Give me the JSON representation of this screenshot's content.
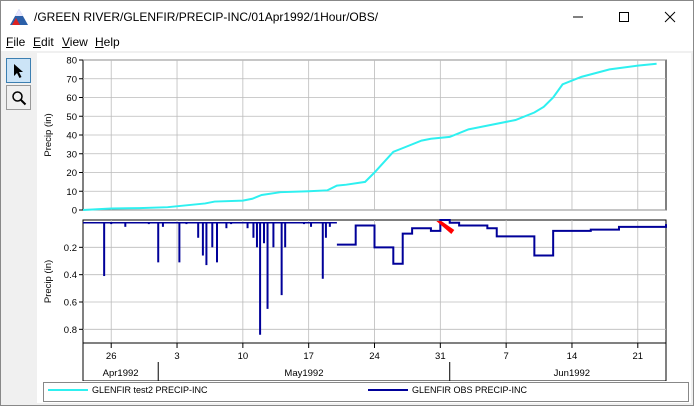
{
  "window": {
    "title": "/GREEN RIVER/GLENFIR/PRECIP-INC/01Apr1992/1Hour/OBS/"
  },
  "menu": {
    "items": [
      {
        "label": "File",
        "key": "F",
        "rest": "ile"
      },
      {
        "label": "Edit",
        "key": "E",
        "rest": "dit"
      },
      {
        "label": "View",
        "key": "V",
        "rest": "iew"
      },
      {
        "label": "Help",
        "key": "H",
        "rest": "elp"
      }
    ]
  },
  "toolbar": {
    "tools": [
      {
        "name": "pointer-tool",
        "icon": "pointer-arrow-icon",
        "active": true
      },
      {
        "name": "zoom-tool",
        "icon": "magnifier-icon",
        "active": false
      }
    ]
  },
  "colors": {
    "series1": "#2ef0f0",
    "series2": "#000099",
    "marker": "#ff0000"
  },
  "chart_data": [
    {
      "type": "line",
      "title": "",
      "xlabel": "",
      "ylabel": "Precip (in)",
      "ylim": [
        0,
        80
      ],
      "yticks": [
        0,
        10,
        20,
        30,
        40,
        50,
        60,
        70,
        80
      ],
      "xlim": [
        "1992-04-23",
        "1992-06-24"
      ],
      "grid": true,
      "series": [
        {
          "name": "GLENFIR test2 PRECIP-INC",
          "x": [
            "1992-04-23",
            "1992-04-26",
            "1992-04-29",
            "1992-05-02",
            "1992-05-04",
            "1992-05-06",
            "1992-05-07",
            "1992-05-10",
            "1992-05-11",
            "1992-05-12",
            "1992-05-14",
            "1992-05-17",
            "1992-05-19",
            "1992-05-20",
            "1992-05-21",
            "1992-05-23",
            "1992-05-24",
            "1992-05-26",
            "1992-05-27",
            "1992-05-29",
            "1992-05-30",
            "1992-06-01",
            "1992-06-03",
            "1992-06-05",
            "1992-06-08",
            "1992-06-10",
            "1992-06-11",
            "1992-06-12",
            "1992-06-13",
            "1992-06-15",
            "1992-06-18",
            "1992-06-21",
            "1992-06-23"
          ],
          "values": [
            0,
            0.8,
            1,
            1.5,
            2.5,
            3.5,
            4.5,
            5,
            6,
            8,
            9.5,
            10,
            10.5,
            13,
            13.5,
            15,
            20,
            31,
            33,
            37,
            38,
            39,
            43,
            45,
            48,
            52,
            55,
            60,
            67,
            71,
            75,
            77,
            78
          ]
        }
      ]
    },
    {
      "type": "bar",
      "title": "",
      "xlabel": "",
      "ylabel": "Precip (in)",
      "ylim": [
        0.9,
        0
      ],
      "yticks": [
        0.2,
        0.4,
        0.6,
        0.8
      ],
      "xlim": [
        "1992-04-23",
        "1992-06-24"
      ],
      "grid": true,
      "series": [
        {
          "name": "GLENFIR OBS PRECIP-INC",
          "spikes": [
            {
              "x": "1992-04-25T06",
              "value": 0.41
            },
            {
              "x": "1992-04-26T00",
              "value": 0.03
            },
            {
              "x": "1992-04-27T12",
              "value": 0.05
            },
            {
              "x": "1992-04-30T00",
              "value": 0.03
            },
            {
              "x": "1992-05-01T00",
              "value": 0.31
            },
            {
              "x": "1992-05-01T12",
              "value": 0.05
            },
            {
              "x": "1992-05-03T06",
              "value": 0.31
            },
            {
              "x": "1992-05-04T00",
              "value": 0.03
            },
            {
              "x": "1992-05-05T06",
              "value": 0.13
            },
            {
              "x": "1992-05-05T18",
              "value": 0.26
            },
            {
              "x": "1992-05-06T03",
              "value": 0.33
            },
            {
              "x": "1992-05-06T18",
              "value": 0.2
            },
            {
              "x": "1992-05-07T06",
              "value": 0.31
            },
            {
              "x": "1992-05-08T06",
              "value": 0.06
            },
            {
              "x": "1992-05-08T18",
              "value": 0.03
            },
            {
              "x": "1992-05-10T12",
              "value": 0.06
            },
            {
              "x": "1992-05-11T03",
              "value": 0.13
            },
            {
              "x": "1992-05-11T12",
              "value": 0.2
            },
            {
              "x": "1992-05-11T20",
              "value": 0.84
            },
            {
              "x": "1992-05-12T06",
              "value": 0.17
            },
            {
              "x": "1992-05-12T15",
              "value": 0.65
            },
            {
              "x": "1992-05-13T06",
              "value": 0.2
            },
            {
              "x": "1992-05-14T03",
              "value": 0.55
            },
            {
              "x": "1992-05-14T12",
              "value": 0.2
            },
            {
              "x": "1992-05-16T12",
              "value": 0.03
            },
            {
              "x": "1992-05-17T06",
              "value": 0.05
            },
            {
              "x": "1992-05-18T12",
              "value": 0.43
            },
            {
              "x": "1992-05-18T20",
              "value": 0.13
            },
            {
              "x": "1992-05-19T06",
              "value": 0.05
            }
          ],
          "steps": {
            "x": [
              "1992-05-20",
              "1992-05-21",
              "1992-05-22",
              "1992-05-24",
              "1992-05-25",
              "1992-05-26",
              "1992-05-27",
              "1992-05-28",
              "1992-05-30",
              "1992-05-31",
              "1992-06-01",
              "1992-06-02",
              "1992-06-05",
              "1992-06-06",
              "1992-06-09",
              "1992-06-10",
              "1992-06-11",
              "1992-06-12",
              "1992-06-16",
              "1992-06-19",
              "1992-06-24"
            ],
            "values": [
              0.18,
              0.18,
              0.04,
              0.2,
              0.2,
              0.32,
              0.1,
              0.06,
              0.08,
              0.0,
              0.02,
              0.04,
              0.06,
              0.12,
              0.12,
              0.26,
              0.26,
              0.08,
              0.07,
              0.05,
              0.03
            ]
          }
        }
      ],
      "annotations": [
        {
          "type": "edit-marker",
          "x": "1992-05-31"
        }
      ]
    }
  ],
  "xaxis": {
    "day_ticks": [
      "26",
      "3",
      "10",
      "17",
      "24",
      "31",
      "7",
      "14",
      "21"
    ],
    "day_dates": [
      "1992-04-26",
      "1992-05-03",
      "1992-05-10",
      "1992-05-17",
      "1992-05-24",
      "1992-05-31",
      "1992-06-07",
      "1992-06-14",
      "1992-06-21"
    ],
    "month_labels": [
      "Apr1992",
      "May1992",
      "Jun1992"
    ]
  },
  "legend": {
    "entries": [
      {
        "label": "GLENFIR test2 PRECIP-INC"
      },
      {
        "label": "GLENFIR OBS PRECIP-INC"
      }
    ]
  }
}
